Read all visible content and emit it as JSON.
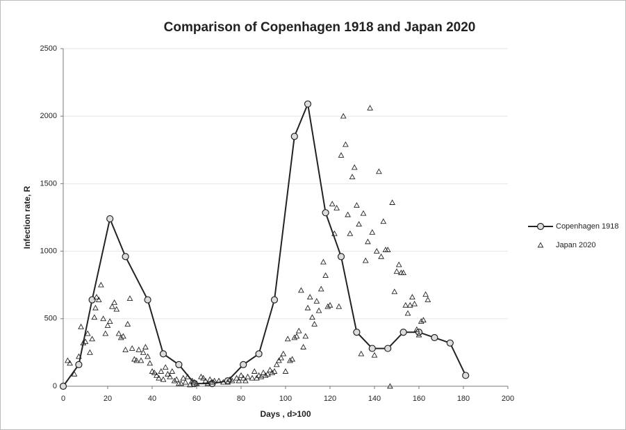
{
  "chart_data": {
    "type": "line",
    "title": "Comparison of Copenhagen 1918 and Japan 2020",
    "x_label": "Days , d>100",
    "y_label": "Infection rate, R",
    "xlim": [
      0,
      200
    ],
    "xticks": [
      0,
      20,
      40,
      60,
      80,
      100,
      120,
      140,
      160,
      180,
      200
    ],
    "ylim": [
      0,
      2500
    ],
    "yticks": [
      0,
      500,
      1000,
      1500,
      2000,
      2500
    ],
    "grid": true,
    "legend": "right",
    "series": [
      {
        "name": "Copenhagen 1918",
        "color": "#222222",
        "marker": "circle",
        "line": true,
        "x": [
          0,
          7,
          13,
          21,
          28,
          38,
          45,
          52,
          59,
          67,
          74,
          81,
          88,
          95,
          104,
          110,
          118,
          125,
          132,
          139,
          146,
          153,
          160,
          167,
          174,
          181
        ],
        "values": [
          0,
          160,
          640,
          1240,
          960,
          640,
          240,
          160,
          20,
          20,
          40,
          160,
          240,
          640,
          1850,
          2090,
          1285,
          960,
          400,
          280,
          280,
          400,
          400,
          360,
          320,
          80
        ]
      },
      {
        "name": "Japan 2020",
        "color": "#222222",
        "marker": "triangle",
        "line": false,
        "x": [
          2,
          3,
          5,
          7,
          8,
          9,
          10,
          11,
          12,
          13,
          14,
          14.5,
          15,
          16,
          17,
          18,
          19,
          20,
          21,
          22,
          23,
          24,
          25,
          26,
          27,
          28,
          29,
          30,
          31,
          32,
          33,
          34,
          35,
          36,
          37,
          38,
          39,
          40,
          41,
          42,
          43,
          44,
          45,
          46,
          47,
          48,
          49,
          50,
          51,
          52,
          53,
          54,
          55,
          56,
          57,
          58,
          59,
          60,
          62,
          63,
          64,
          65,
          66,
          67,
          68,
          70,
          72,
          74,
          75,
          76,
          78,
          79,
          80,
          81,
          82,
          83,
          85,
          86,
          87,
          88,
          89,
          90,
          91,
          92,
          93,
          94,
          95,
          96,
          97,
          98,
          99,
          100,
          101,
          102,
          103,
          104,
          105,
          106,
          107,
          108,
          109,
          110,
          111,
          112,
          113,
          114,
          115,
          116,
          117,
          118,
          119,
          120,
          121,
          122,
          123,
          124,
          125,
          126,
          127,
          128,
          129,
          130,
          131,
          132,
          133,
          134,
          135,
          136,
          137,
          138,
          139,
          140,
          141,
          142,
          143,
          144,
          145,
          146,
          147,
          148,
          149,
          150,
          151,
          152,
          153,
          154,
          155,
          156,
          157,
          158,
          159,
          160,
          161,
          162,
          163,
          164
        ],
        "values": [
          190,
          170,
          90,
          220,
          440,
          320,
          330,
          390,
          250,
          350,
          510,
          580,
          660,
          640,
          750,
          500,
          390,
          450,
          480,
          590,
          620,
          570,
          390,
          360,
          370,
          270,
          460,
          650,
          280,
          200,
          190,
          270,
          190,
          250,
          290,
          220,
          170,
          110,
          100,
          80,
          60,
          110,
          50,
          140,
          90,
          70,
          110,
          40,
          50,
          20,
          20,
          60,
          30,
          70,
          10,
          40,
          30,
          20,
          70,
          60,
          40,
          20,
          50,
          30,
          40,
          40,
          30,
          30,
          50,
          40,
          60,
          40,
          80,
          60,
          40,
          70,
          60,
          110,
          60,
          80,
          70,
          100,
          80,
          90,
          120,
          100,
          110,
          160,
          190,
          210,
          240,
          110,
          350,
          190,
          200,
          360,
          370,
          410,
          710,
          290,
          370,
          580,
          660,
          510,
          460,
          630,
          560,
          720,
          920,
          820,
          590,
          600,
          1350,
          1130,
          1320,
          590,
          1710,
          2000,
          1790,
          1270,
          1130,
          1550,
          1620,
          1340,
          1200,
          240,
          1280,
          930,
          1070,
          2060,
          1140,
          230,
          1000,
          1590,
          960,
          1220,
          1010,
          1010,
          0,
          1360,
          700,
          850,
          900,
          840,
          840,
          600,
          540,
          600,
          660,
          610,
          420,
          380,
          480,
          490,
          680,
          640
        ]
      }
    ]
  }
}
